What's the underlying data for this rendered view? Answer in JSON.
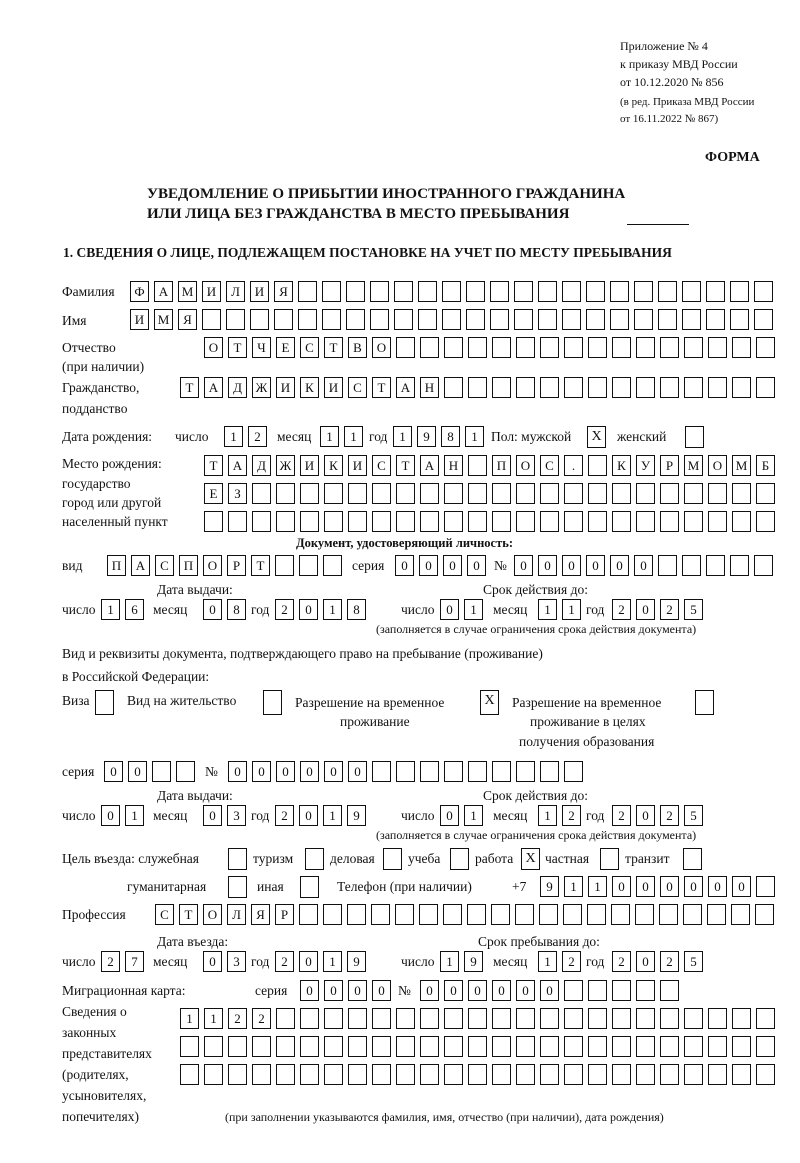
{
  "header": {
    "appendix": [
      "Приложение № 4",
      "к приказу МВД России",
      "от 10.12.2020 № 856"
    ],
    "revision": [
      "(в ред. Приказа МВД России",
      "от 16.11.2022 № 867)"
    ],
    "forma": "ФОРМА",
    "title_line1": "УВЕДОМЛЕНИЕ О ПРИБЫТИИ ИНОСТРАННОГО ГРАЖДАНИНА",
    "title_line2": "ИЛИ ЛИЦА БЕЗ ГРАЖДАНСТВА В МЕСТО ПРЕБЫВАНИЯ",
    "section1": "1. СВЕДЕНИЯ О ЛИЦЕ, ПОДЛЕЖАЩЕМ ПОСТАНОВКЕ НА УЧЕТ ПО МЕСТУ ПРЕБЫВАНИЯ"
  },
  "labels": {
    "surname": "Фамилия",
    "name": "Имя",
    "patronymic": "Отчество",
    "patronymic2": "(при наличии)",
    "citizenship": "Гражданство,",
    "citizenship2": "подданство",
    "birth_date": "Дата рождения:",
    "day": "число",
    "month": "месяц",
    "year": "год",
    "sex": "Пол: мужской",
    "female": "женский",
    "birthplace": [
      "Место рождения:",
      "государство",
      "город или другой",
      "населенный пункт"
    ],
    "id_doc": "Документ, удостоверяющий личность:",
    "kind": "вид",
    "series": "серия",
    "number": "№",
    "issue_date": "Дата выдачи:",
    "valid_until": "Срок действия до:",
    "validity_note": "(заполняется в случае ограничения срока действия документа)",
    "stay_doc": "Вид и реквизиты документа, подтверждающего право на пребывание (проживание)",
    "stay_doc2": "в Российской Федерации:",
    "visa": "Виза",
    "residence": "Вид на жительство",
    "trp": [
      "Разрешение на временное",
      "проживание"
    ],
    "trp_edu": [
      "Разрешение на временное",
      "проживание в целях",
      "получения образования"
    ],
    "purpose": "Цель въезда: служебная",
    "tourism": "туризм",
    "business": "деловая",
    "study": "учеба",
    "work": "работа",
    "private": "частная",
    "transit": "транзит",
    "humanitarian": "гуманитарная",
    "other": "иная",
    "phone": "Телефон (при наличии)",
    "phone_prefix": "+7",
    "profession": "Профессия",
    "entry_date": "Дата въезда:",
    "stay_until": "Срок пребывания до:",
    "migration_card": "Миграционная карта:",
    "representatives": [
      "Сведения о",
      "законных",
      "представителях",
      "(родителях,",
      "усыновителях,",
      "попечителях)"
    ],
    "representatives_note": "(при заполнении указываются фамилия, имя, отчество (при наличии), дата рождения)"
  },
  "person": {
    "surname": "ФАМИЛИЯ",
    "name": "ИМЯ",
    "patronymic": "ОТЧЕСТВО",
    "citizenship": "ТАДЖИКИСТАН",
    "birth_day": "12",
    "birth_month": "11",
    "birth_year": "1981",
    "male": "X",
    "female": "",
    "birthplace1": "ТАДЖИКИСТАН ПОС. КУРМОМБ",
    "birthplace2": "ЕЗ",
    "birthplace3": "",
    "doc_kind": "ПАСПОРТ",
    "doc_series": "0000",
    "doc_number": "000000",
    "doc_issue_day": "16",
    "doc_issue_month": "08",
    "doc_issue_year": "2018",
    "doc_valid_day": "01",
    "doc_valid_month": "11",
    "doc_valid_year": "2025",
    "visa": "",
    "residence": "",
    "trp": "X",
    "trp_edu": "",
    "stay_series": "00",
    "stay_number": "000000",
    "stay_issue_day": "01",
    "stay_issue_month": "03",
    "stay_issue_year": "2019",
    "stay_valid_day": "01",
    "stay_valid_month": "12",
    "stay_valid_year": "2025",
    "p_service": "",
    "p_tourism": "",
    "p_business": "",
    "p_study": "",
    "p_work": "X",
    "p_private": "",
    "p_transit": "",
    "p_humanitarian": "",
    "p_other": "",
    "phone": "911000000",
    "profession": "СТОЛЯР",
    "entry_day": "27",
    "entry_month": "03",
    "entry_year": "2019",
    "stay_until_day": "19",
    "stay_until_month": "12",
    "stay_until_year": "2025",
    "mc_series": "0000",
    "mc_number": "000000",
    "rep1": "1122",
    "rep2": "",
    "rep3": ""
  }
}
